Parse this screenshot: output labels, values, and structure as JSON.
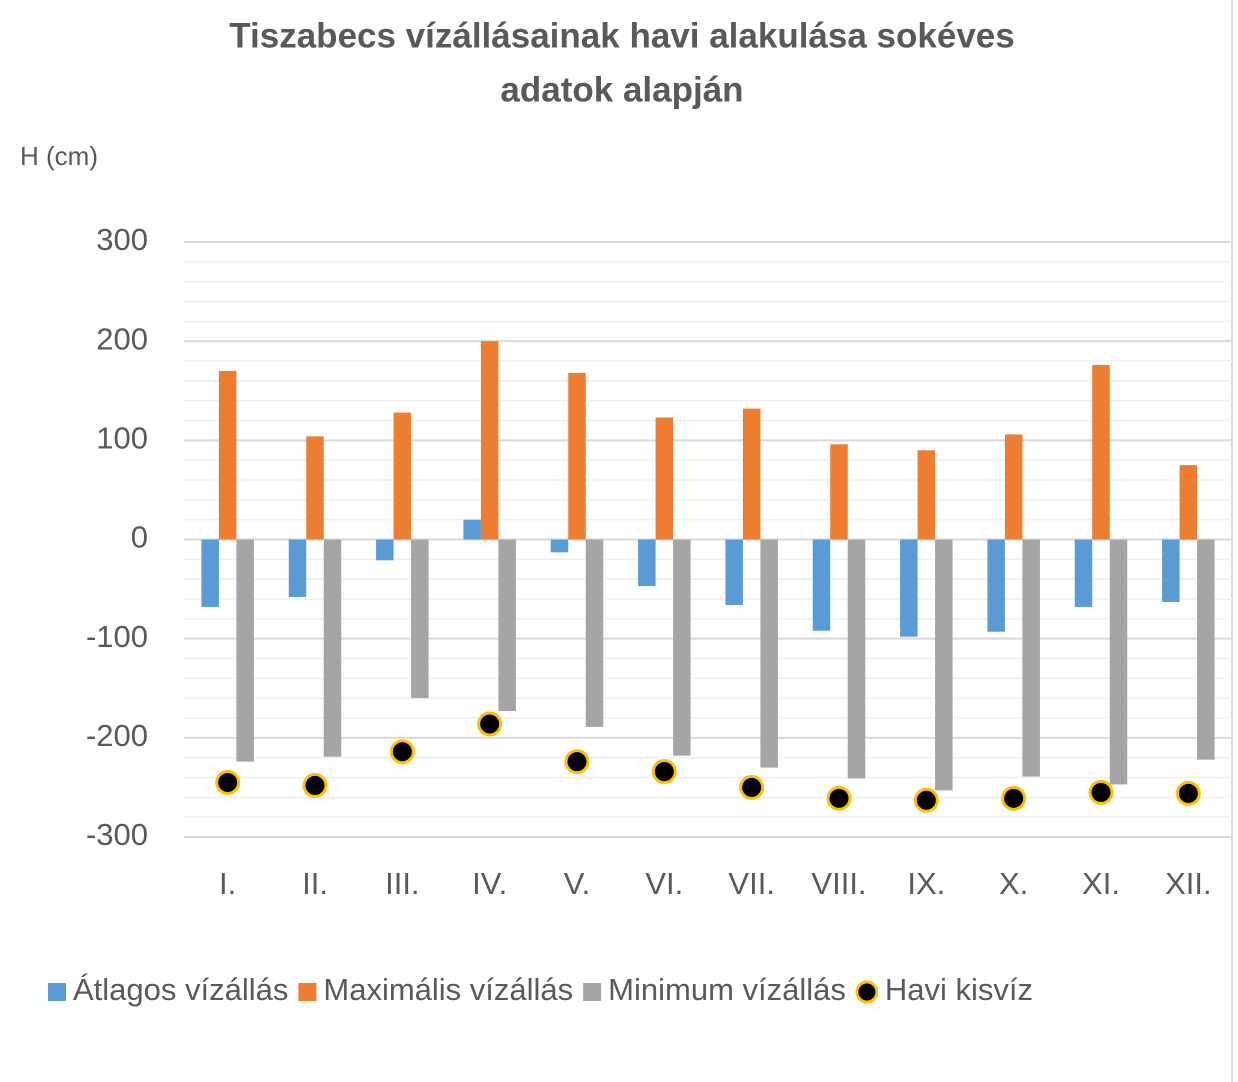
{
  "chart_data": {
    "type": "bar",
    "title": [
      "Tiszabecs vízállásainak havi alakulása sokéves",
      "adatok alapján"
    ],
    "y_label": "H (cm)",
    "categories": [
      "I.",
      "II.",
      "III.",
      "IV.",
      "V.",
      "VI.",
      "VII.",
      "VIII.",
      "IX.",
      "X.",
      "XI.",
      "XII."
    ],
    "series": [
      {
        "name": "Átlagos vízállás",
        "type": "bar",
        "color": "#5b9bd5",
        "values": [
          -68,
          -58,
          -21,
          20,
          -13,
          -47,
          -66,
          -92,
          -98,
          -93,
          -68,
          -63
        ]
      },
      {
        "name": "Maximális vízállás",
        "type": "bar",
        "color": "#ed7d31",
        "values": [
          170,
          104,
          128,
          200,
          168,
          123,
          132,
          96,
          90,
          106,
          176,
          75
        ]
      },
      {
        "name": "Minimum vízállás",
        "type": "bar",
        "color": "#a5a5a5",
        "values": [
          -224,
          -219,
          -160,
          -173,
          -189,
          -218,
          -230,
          -241,
          -253,
          -239,
          -247,
          -222
        ]
      },
      {
        "name": "Havi kisvíz",
        "type": "scatter",
        "color": "#000000",
        "edge_color": "#ffc000",
        "values": [
          -245,
          -248,
          -214,
          -186,
          -224,
          -234,
          -250,
          -261,
          -263,
          -261,
          -255,
          -256
        ]
      }
    ],
    "ylim": [
      -300,
      300
    ],
    "yticks": [
      -300,
      -200,
      -100,
      0,
      100,
      200,
      300
    ],
    "yminorticks": [
      -280,
      -260,
      -240,
      -220,
      -180,
      -160,
      -140,
      -120,
      -80,
      -60,
      -40,
      -20,
      20,
      40,
      60,
      80,
      120,
      140,
      160,
      180,
      220,
      240,
      260,
      280
    ],
    "grid": true,
    "legend": "bottom"
  }
}
